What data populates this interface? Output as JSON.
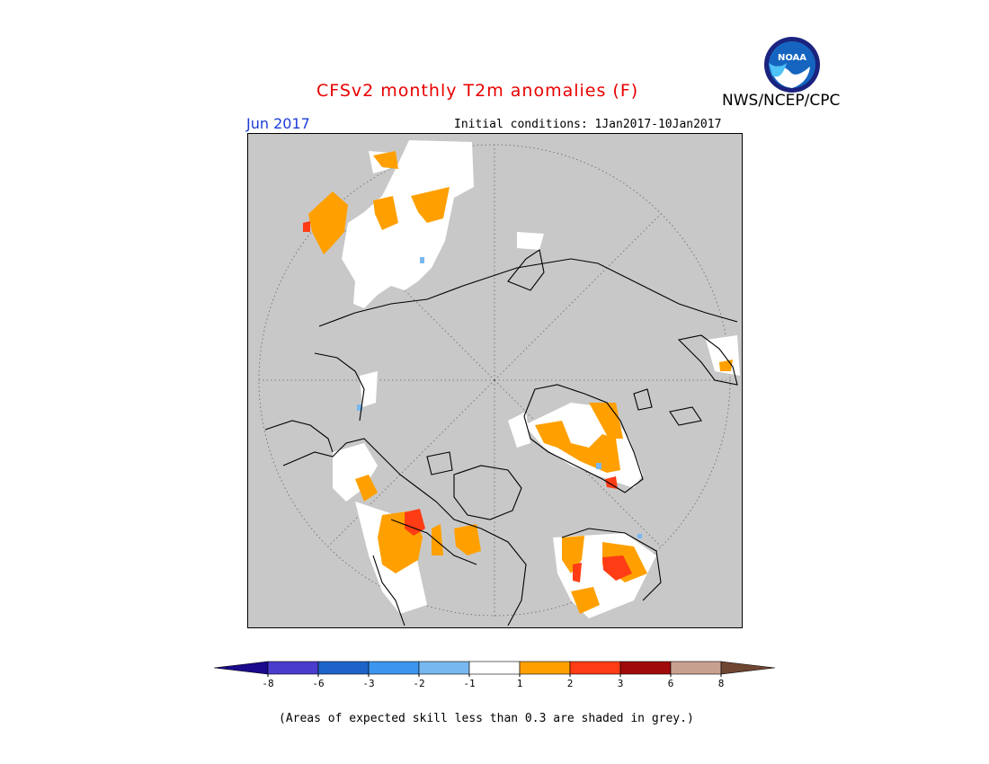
{
  "title": "CFSv2 monthly T2m anomalies (F)",
  "organization": "NWS/NCEP/CPC",
  "logo_text": "NOAA",
  "valid_month": "Jun 2017",
  "initial_conditions": "Initial conditions: 1Jan2017-10Jan2017",
  "footnote": "(Areas of expected skill less than 0.3 are shaded in grey.)",
  "colors": {
    "title": "#e80000",
    "valid_month": "#1c3cd8",
    "low_skill_grey": "#c8c8c8",
    "coastline": "#000000"
  },
  "colorbar": {
    "tick_labels": [
      "-8",
      "-6",
      "-3",
      "-2",
      "-1",
      "1",
      "2",
      "3",
      "6",
      "8"
    ],
    "bins": [
      {
        "range": "< -8",
        "color": "#1a0a8c"
      },
      {
        "range": "-8 to -6",
        "color": "#4a3ccc"
      },
      {
        "range": "-6 to -3",
        "color": "#1e64c8"
      },
      {
        "range": "-3 to -2",
        "color": "#3c96f0"
      },
      {
        "range": "-2 to -1",
        "color": "#78b8f0"
      },
      {
        "range": "-1 to 1",
        "color": "#ffffff"
      },
      {
        "range": "1 to 2",
        "color": "#ffa000"
      },
      {
        "range": "2 to 3",
        "color": "#ff3c14"
      },
      {
        "range": "3 to 6",
        "color": "#a00a0a"
      },
      {
        "range": "6 to 8",
        "color": "#c8a090"
      },
      {
        "range": "> 8",
        "color": "#6e4632"
      }
    ]
  }
}
